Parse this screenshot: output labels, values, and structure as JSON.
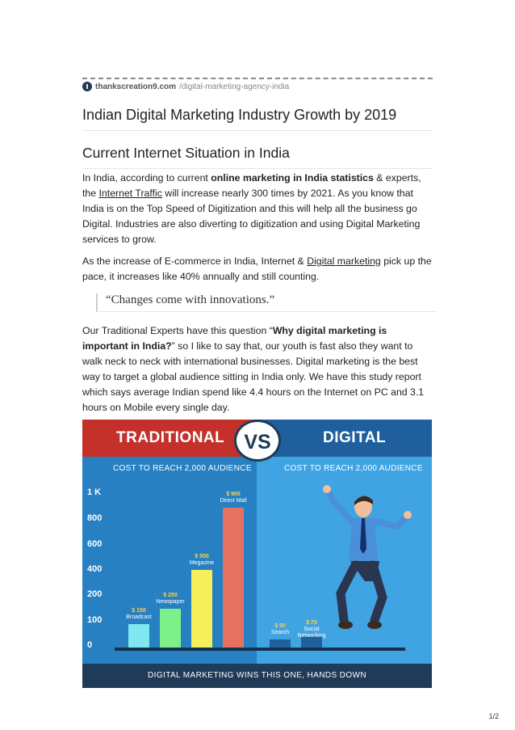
{
  "source": {
    "domain": "thankscreation9.com",
    "path": "/digital-marketing-agency-india"
  },
  "title": "Indian Digital Marketing Industry Growth by 2019",
  "heading": "Current Internet Situation in India",
  "para1": {
    "a": "In India, according to current ",
    "b_bold": "online marketing in India statistics",
    "c": " & experts, the ",
    "link": "Internet Traffic",
    "d": " will increase nearly 300 times by 2021. As you know that India is on the Top Speed of Digitization and this will help all the business go Digital. Industries are also diverting to digitization and using Digital Marketing services to grow."
  },
  "para2": {
    "a": "As the increase of E-commerce in India, Internet & ",
    "link": "Digital marketing",
    "b": " pick up the pace, it increases like 40% annually and still counting."
  },
  "quote": "“Changes come with innovations.”",
  "para3": {
    "a": "Our Traditional Experts have this question “",
    "b_bold": "Why digital marketing is important in India?",
    "c": "” so I like to say that, our youth is fast also they want to walk neck to neck with international businesses. Digital marketing is the best way to target a global audience sitting in India only. We have this study report which says average Indian spend like 4.4 hours on the Internet on PC and 3.1 hours on Mobile every single day."
  },
  "infographic": {
    "left_title": "TRADITIONAL",
    "vs": "VS",
    "right_title": "DIGITAL",
    "left_cost": "COST TO REACH 2,000 AUDIENCE",
    "right_cost": "COST TO REACH 2,000 AUDIENCE",
    "footer": "DIGITAL MARKETING WINS THIS ONE, HANDS DOWN"
  },
  "chart_data": {
    "type": "bar",
    "title": "",
    "xlabel": "",
    "ylabel": "",
    "ylim": [
      0,
      1000
    ],
    "yticks": [
      "1 K",
      "800",
      "600",
      "400",
      "200",
      "100",
      "0"
    ],
    "categories": [
      "Broadcast",
      "Newspaper",
      "Megazine",
      "Direct Mail",
      "Search",
      "Social Networking"
    ],
    "value_labels": [
      "$ 150",
      "$ 250",
      "$ 500",
      "$ 900",
      "$ 50",
      "$ 75"
    ],
    "values": [
      150,
      250,
      500,
      900,
      50,
      75
    ],
    "colors": [
      "#7fe7f0",
      "#7ef08a",
      "#f6ee5a",
      "#e57160",
      "#1f5f9e",
      "#1f5f9e"
    ]
  },
  "page_number": "1/2"
}
